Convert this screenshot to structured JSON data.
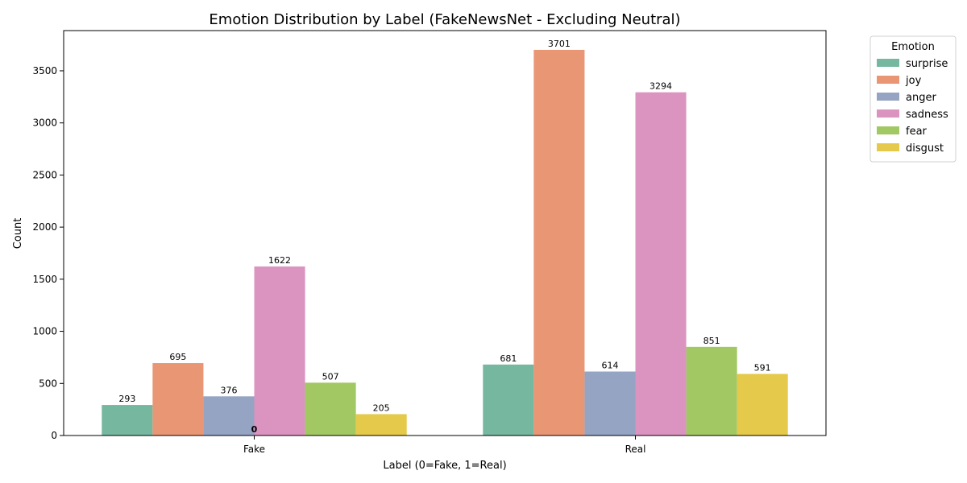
{
  "chart_data": {
    "type": "bar",
    "title": "Emotion Distribution by Label (FakeNewsNet - Excluding Neutral)",
    "xlabel": "Label (0=Fake, 1=Real)",
    "ylabel": "Count",
    "ylim": [
      0,
      3886
    ],
    "yticks": [
      0,
      500,
      1000,
      1500,
      2000,
      2500,
      3000,
      3500
    ],
    "categories": [
      "Fake",
      "Real"
    ],
    "legend": {
      "title": "Emotion",
      "placement": "outside-top-right"
    },
    "series": [
      {
        "name": "surprise",
        "color": "#76b7a0",
        "values": [
          293,
          681
        ]
      },
      {
        "name": "joy",
        "color": "#e99675",
        "values": [
          695,
          3701
        ]
      },
      {
        "name": "anger",
        "color": "#95a4c3",
        "values": [
          376,
          614
        ]
      },
      {
        "name": "sadness",
        "color": "#db94bf",
        "values": [
          1622,
          3294
        ]
      },
      {
        "name": "fear",
        "color": "#a2c864",
        "values": [
          507,
          851
        ]
      },
      {
        "name": "disgust",
        "color": "#e4c94a",
        "values": [
          205,
          591
        ]
      }
    ],
    "extra_label": "0"
  }
}
